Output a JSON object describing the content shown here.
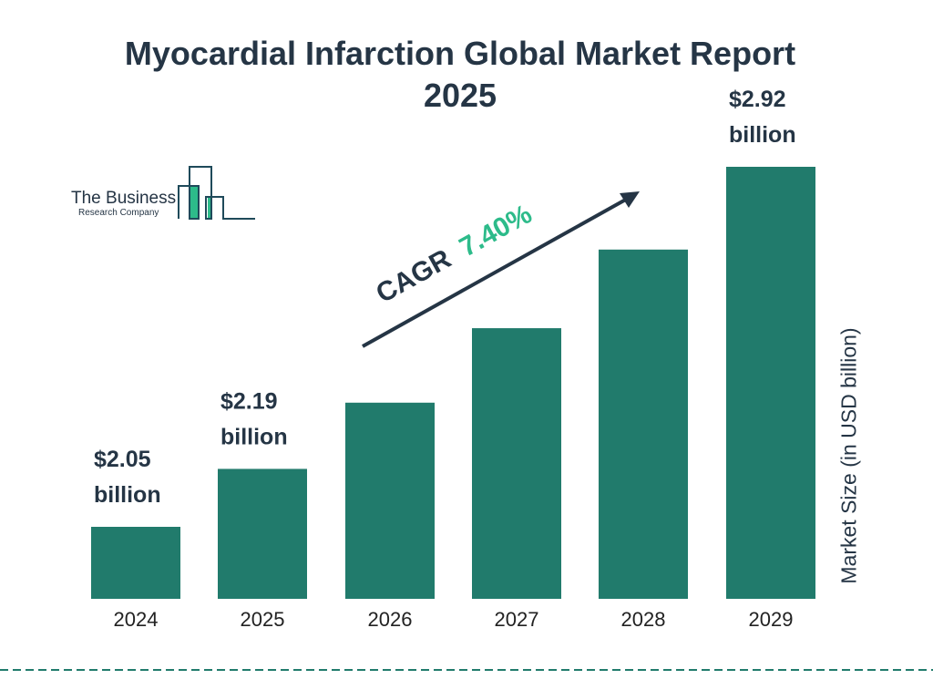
{
  "title_line1": "Myocardial Infarction Global Market Report",
  "title_line2": "2025",
  "logo": {
    "line1": "The Business",
    "line2": "Research Company"
  },
  "colors": {
    "bar": "#217b6c",
    "text": "#253545",
    "accent": "#2dbb8a",
    "logo_line": "#1f4a5a"
  },
  "chart_data": {
    "type": "bar",
    "categories": [
      "2024",
      "2025",
      "2026",
      "2027",
      "2028",
      "2029"
    ],
    "values": [
      2.05,
      2.19,
      2.35,
      2.53,
      2.72,
      2.92
    ],
    "data_labels": [
      {
        "category": "2024",
        "value": "$2.05",
        "unit": "billion"
      },
      {
        "category": "2025",
        "value": "$2.19",
        "unit": "billion"
      },
      {
        "category": "2029",
        "value": "$2.92",
        "unit": "billion"
      }
    ],
    "ylabel": "Market Size (in USD billion)",
    "xlabel": "",
    "annotation": {
      "label": "CAGR",
      "value": "7.40%"
    },
    "grid": false
  }
}
